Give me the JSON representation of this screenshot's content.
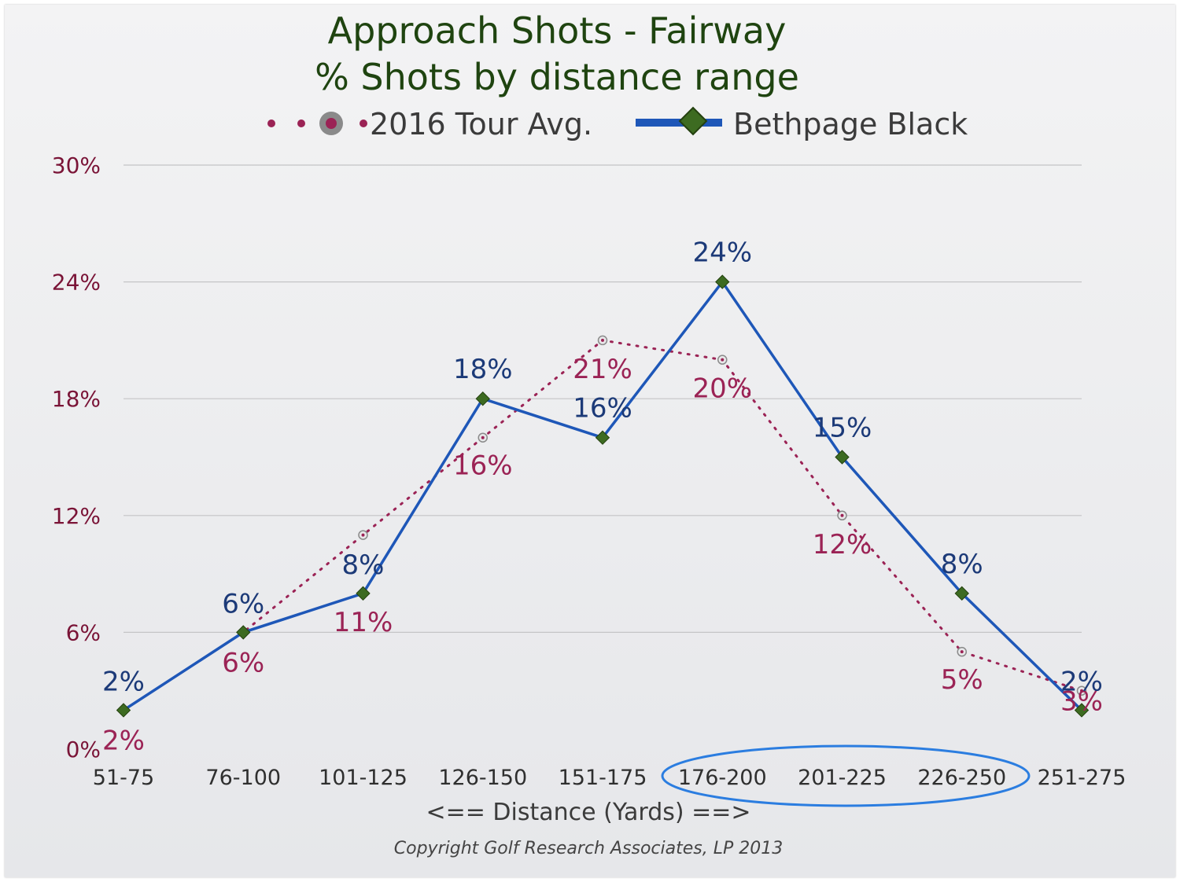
{
  "chart_data": {
    "type": "line",
    "title": "Approach Shots - Fairway",
    "subtitle": "% Shots by distance range",
    "xlabel": "<== Distance (Yards) ==>",
    "ylabel": "",
    "categories": [
      "51-75",
      "76-100",
      "101-125",
      "126-150",
      "151-175",
      "176-200",
      "201-225",
      "226-250",
      "251-275"
    ],
    "ylim": [
      0,
      30
    ],
    "yticks": [
      0,
      6,
      12,
      18,
      24,
      30
    ],
    "ytick_labels": [
      "0%",
      "6%",
      "12%",
      "18%",
      "24%",
      "30%"
    ],
    "grid": true,
    "legend_position": "top",
    "series": [
      {
        "name": "2016 Tour Avg.",
        "values": [
          2,
          6,
          11,
          16,
          21,
          20,
          12,
          5,
          3
        ],
        "labels": [
          "2%",
          "6%",
          "11%",
          "16%",
          "21%",
          "20%",
          "12%",
          "5%",
          "3%"
        ],
        "color": "#9b2355",
        "style": "dotted",
        "marker": "circle"
      },
      {
        "name": "Bethpage Black",
        "values": [
          2,
          6,
          8,
          18,
          16,
          24,
          15,
          8,
          2
        ],
        "labels": [
          "2%",
          "6%",
          "8%",
          "18%",
          "16%",
          "24%",
          "15%",
          "8%",
          "2%"
        ],
        "color": "#1e57b8",
        "style": "solid",
        "marker": "diamond",
        "marker_color": "#3d6b21"
      }
    ],
    "annotation": "highlight-ellipse"
  },
  "copyright": "Copyright Golf Research Associates, LP 2013",
  "colors": {
    "title": "#1f4410",
    "tour_label": "#9b2355",
    "bethpage_label": "#1c3a78",
    "highlight": "#2b7de0"
  }
}
